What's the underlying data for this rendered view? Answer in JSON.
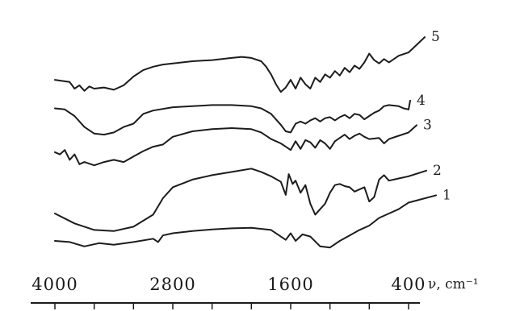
{
  "chart_data": {
    "type": "line",
    "x_axis": {
      "unit_label": "ν, cm⁻¹",
      "tick_labels": [
        "4000",
        "2800",
        "1600",
        "400"
      ],
      "tick_values": [
        4000,
        2800,
        1600,
        400
      ],
      "range": [
        4000,
        400
      ],
      "reversed": true
    },
    "y_axis": {
      "visible": false,
      "ticks_shown": false
    },
    "grid": false,
    "stacked_offset": true,
    "series": [
      {
        "name": "1",
        "points": [
          [
            4000,
            0.72
          ],
          [
            3850,
            0.7
          ],
          [
            3700,
            0.62
          ],
          [
            3550,
            0.68
          ],
          [
            3400,
            0.65
          ],
          [
            3200,
            0.7
          ],
          [
            3000,
            0.76
          ],
          [
            2950,
            0.7
          ],
          [
            2900,
            0.82
          ],
          [
            2800,
            0.86
          ],
          [
            2600,
            0.9
          ],
          [
            2400,
            0.93
          ],
          [
            2200,
            0.95
          ],
          [
            2000,
            0.96
          ],
          [
            1800,
            0.92
          ],
          [
            1650,
            0.74
          ],
          [
            1600,
            0.86
          ],
          [
            1550,
            0.72
          ],
          [
            1480,
            0.84
          ],
          [
            1400,
            0.8
          ],
          [
            1300,
            0.62
          ],
          [
            1200,
            0.6
          ],
          [
            1100,
            0.72
          ],
          [
            1000,
            0.82
          ],
          [
            900,
            0.92
          ],
          [
            800,
            1.0
          ],
          [
            700,
            1.14
          ],
          [
            600,
            1.22
          ],
          [
            500,
            1.3
          ],
          [
            400,
            1.42
          ]
        ]
      },
      {
        "name": "2",
        "points": [
          [
            4000,
            1.22
          ],
          [
            3800,
            1.04
          ],
          [
            3600,
            0.92
          ],
          [
            3400,
            0.9
          ],
          [
            3200,
            0.98
          ],
          [
            3000,
            1.2
          ],
          [
            2900,
            1.5
          ],
          [
            2800,
            1.7
          ],
          [
            2600,
            1.84
          ],
          [
            2400,
            1.92
          ],
          [
            2200,
            1.98
          ],
          [
            2000,
            2.04
          ],
          [
            1900,
            1.98
          ],
          [
            1800,
            1.9
          ],
          [
            1700,
            1.8
          ],
          [
            1650,
            1.56
          ],
          [
            1620,
            1.94
          ],
          [
            1580,
            1.76
          ],
          [
            1550,
            1.82
          ],
          [
            1500,
            1.6
          ],
          [
            1450,
            1.74
          ],
          [
            1400,
            1.4
          ],
          [
            1350,
            1.2
          ],
          [
            1300,
            1.3
          ],
          [
            1250,
            1.4
          ],
          [
            1200,
            1.6
          ],
          [
            1150,
            1.74
          ],
          [
            1100,
            1.76
          ],
          [
            1050,
            1.72
          ],
          [
            1000,
            1.7
          ],
          [
            950,
            1.62
          ],
          [
            900,
            1.66
          ],
          [
            850,
            1.7
          ],
          [
            800,
            1.44
          ],
          [
            750,
            1.52
          ],
          [
            700,
            1.84
          ],
          [
            650,
            1.92
          ],
          [
            600,
            1.82
          ],
          [
            500,
            1.86
          ],
          [
            400,
            1.9
          ]
        ]
      },
      {
        "name": "3",
        "points": [
          [
            4000,
            2.34
          ],
          [
            3950,
            2.3
          ],
          [
            3900,
            2.38
          ],
          [
            3850,
            2.2
          ],
          [
            3800,
            2.3
          ],
          [
            3750,
            2.12
          ],
          [
            3700,
            2.16
          ],
          [
            3600,
            2.1
          ],
          [
            3500,
            2.16
          ],
          [
            3400,
            2.2
          ],
          [
            3300,
            2.16
          ],
          [
            3200,
            2.26
          ],
          [
            3100,
            2.36
          ],
          [
            3000,
            2.44
          ],
          [
            2900,
            2.48
          ],
          [
            2800,
            2.62
          ],
          [
            2600,
            2.72
          ],
          [
            2400,
            2.76
          ],
          [
            2200,
            2.78
          ],
          [
            2000,
            2.76
          ],
          [
            1900,
            2.7
          ],
          [
            1800,
            2.58
          ],
          [
            1700,
            2.5
          ],
          [
            1650,
            2.44
          ],
          [
            1600,
            2.38
          ],
          [
            1550,
            2.54
          ],
          [
            1500,
            2.4
          ],
          [
            1450,
            2.56
          ],
          [
            1400,
            2.52
          ],
          [
            1350,
            2.42
          ],
          [
            1300,
            2.56
          ],
          [
            1250,
            2.5
          ],
          [
            1200,
            2.4
          ],
          [
            1150,
            2.54
          ],
          [
            1100,
            2.6
          ],
          [
            1050,
            2.66
          ],
          [
            1000,
            2.58
          ],
          [
            950,
            2.64
          ],
          [
            900,
            2.68
          ],
          [
            850,
            2.62
          ],
          [
            800,
            2.58
          ],
          [
            700,
            2.6
          ],
          [
            650,
            2.5
          ],
          [
            600,
            2.58
          ],
          [
            500,
            2.64
          ],
          [
            400,
            2.7
          ]
        ]
      },
      {
        "name": "4",
        "points": [
          [
            4000,
            3.14
          ],
          [
            3900,
            3.12
          ],
          [
            3800,
            3.0
          ],
          [
            3700,
            2.8
          ],
          [
            3600,
            2.68
          ],
          [
            3500,
            2.66
          ],
          [
            3400,
            2.7
          ],
          [
            3300,
            2.8
          ],
          [
            3200,
            2.86
          ],
          [
            3100,
            3.04
          ],
          [
            3000,
            3.1
          ],
          [
            2800,
            3.16
          ],
          [
            2600,
            3.18
          ],
          [
            2400,
            3.2
          ],
          [
            2200,
            3.2
          ],
          [
            2000,
            3.18
          ],
          [
            1900,
            3.14
          ],
          [
            1800,
            3.04
          ],
          [
            1700,
            2.84
          ],
          [
            1650,
            2.72
          ],
          [
            1600,
            2.7
          ],
          [
            1550,
            2.86
          ],
          [
            1500,
            2.9
          ],
          [
            1450,
            2.86
          ],
          [
            1400,
            2.92
          ],
          [
            1350,
            2.96
          ],
          [
            1300,
            2.9
          ],
          [
            1250,
            2.96
          ],
          [
            1200,
            2.98
          ],
          [
            1150,
            2.92
          ],
          [
            1100,
            2.98
          ],
          [
            1050,
            3.02
          ],
          [
            1000,
            2.96
          ],
          [
            950,
            3.04
          ],
          [
            900,
            3.02
          ],
          [
            850,
            2.94
          ],
          [
            800,
            3.0
          ],
          [
            750,
            3.06
          ],
          [
            700,
            3.1
          ],
          [
            650,
            3.18
          ],
          [
            600,
            3.2
          ],
          [
            500,
            3.18
          ],
          [
            450,
            3.14
          ],
          [
            400,
            3.12
          ]
        ]
      },
      {
        "name": "5",
        "points": [
          [
            4000,
            3.66
          ],
          [
            3850,
            3.62
          ],
          [
            3800,
            3.5
          ],
          [
            3750,
            3.56
          ],
          [
            3700,
            3.46
          ],
          [
            3650,
            3.54
          ],
          [
            3600,
            3.5
          ],
          [
            3500,
            3.52
          ],
          [
            3400,
            3.48
          ],
          [
            3300,
            3.56
          ],
          [
            3200,
            3.72
          ],
          [
            3100,
            3.84
          ],
          [
            3000,
            3.9
          ],
          [
            2900,
            3.94
          ],
          [
            2800,
            3.96
          ],
          [
            2600,
            4.0
          ],
          [
            2400,
            4.02
          ],
          [
            2200,
            4.06
          ],
          [
            2100,
            4.08
          ],
          [
            2000,
            4.06
          ],
          [
            1900,
            4.0
          ],
          [
            1850,
            3.9
          ],
          [
            1800,
            3.76
          ],
          [
            1750,
            3.58
          ],
          [
            1700,
            3.44
          ],
          [
            1650,
            3.52
          ],
          [
            1600,
            3.66
          ],
          [
            1550,
            3.5
          ],
          [
            1500,
            3.7
          ],
          [
            1450,
            3.58
          ],
          [
            1400,
            3.5
          ],
          [
            1350,
            3.7
          ],
          [
            1300,
            3.62
          ],
          [
            1250,
            3.76
          ],
          [
            1200,
            3.7
          ],
          [
            1150,
            3.82
          ],
          [
            1100,
            3.74
          ],
          [
            1050,
            3.88
          ],
          [
            1000,
            3.8
          ],
          [
            950,
            3.92
          ],
          [
            900,
            3.86
          ],
          [
            850,
            3.98
          ],
          [
            800,
            4.14
          ],
          [
            750,
            4.02
          ],
          [
            700,
            3.96
          ],
          [
            650,
            4.04
          ],
          [
            600,
            3.98
          ],
          [
            550,
            4.04
          ],
          [
            500,
            4.1
          ],
          [
            400,
            4.16
          ]
        ]
      }
    ]
  }
}
